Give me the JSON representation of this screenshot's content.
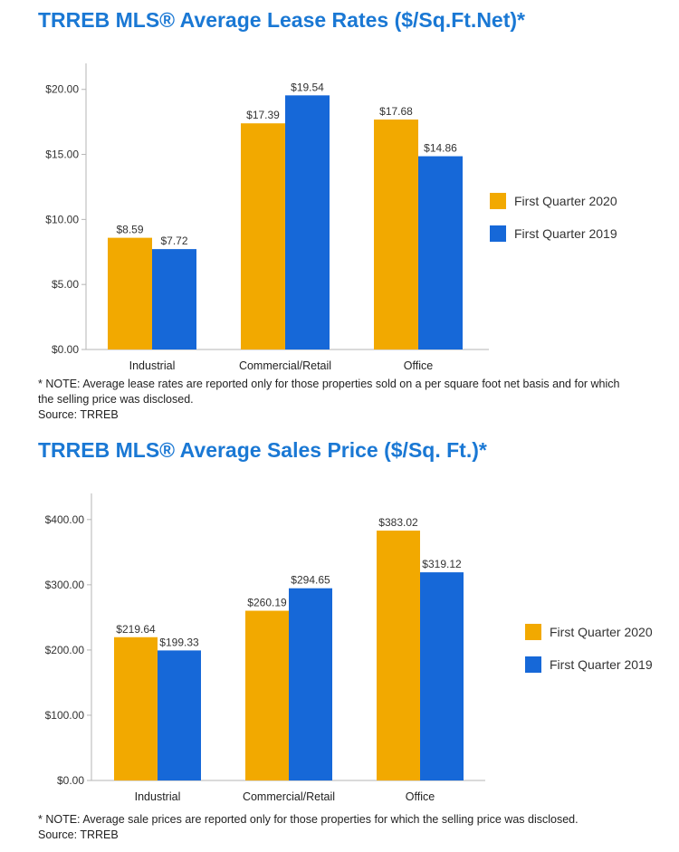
{
  "chart_data": [
    {
      "type": "bar",
      "title": "TRREB MLS® Average Lease Rates ($/Sq.Ft.Net)*",
      "categories": [
        "Industrial",
        "Commercial/Retail",
        "Office"
      ],
      "series": [
        {
          "name": "First Quarter 2020",
          "color": "#f2a900",
          "values": [
            8.59,
            17.39,
            17.68
          ],
          "labels": [
            "$8.59",
            "$17.39",
            "$17.68"
          ]
        },
        {
          "name": "First Quarter 2019",
          "color": "#1668d8",
          "values": [
            7.72,
            19.54,
            14.86
          ],
          "labels": [
            "$7.72",
            "$19.54",
            "$14.86"
          ]
        }
      ],
      "yticks": [
        0,
        5,
        10,
        15,
        20
      ],
      "ytick_labels": [
        "$0.00",
        "$5.00",
        "$10.00",
        "$15.00",
        "$20.00"
      ],
      "ylim": [
        0,
        22
      ],
      "xlabel": "",
      "ylabel": "",
      "grid": false,
      "legend_position": "right",
      "note": "* NOTE: Average lease rates are reported only for those properties sold on a per square foot net basis and for which the selling price was disclosed.",
      "source": "Source: TRREB"
    },
    {
      "type": "bar",
      "title": "TRREB MLS® Average Sales Price ($/Sq. Ft.)*",
      "categories": [
        "Industrial",
        "Commercial/Retail",
        "Office"
      ],
      "series": [
        {
          "name": "First Quarter 2020",
          "color": "#f2a900",
          "values": [
            219.64,
            260.19,
            383.02
          ],
          "labels": [
            "$219.64",
            "$260.19",
            "$383.02"
          ]
        },
        {
          "name": "First Quarter 2019",
          "color": "#1668d8",
          "values": [
            199.33,
            294.65,
            319.12
          ],
          "labels": [
            "$199.33",
            "$294.65",
            "$319.12"
          ]
        }
      ],
      "yticks": [
        0,
        100,
        200,
        300,
        400
      ],
      "ytick_labels": [
        "$0.00",
        "$100.00",
        "$200.00",
        "$300.00",
        "$400.00"
      ],
      "ylim": [
        0,
        440
      ],
      "xlabel": "",
      "ylabel": "",
      "grid": false,
      "legend_position": "right",
      "note": "* NOTE: Average sale prices are reported only for those properties for which the selling price was disclosed.",
      "source": "Source: TRREB"
    }
  ]
}
